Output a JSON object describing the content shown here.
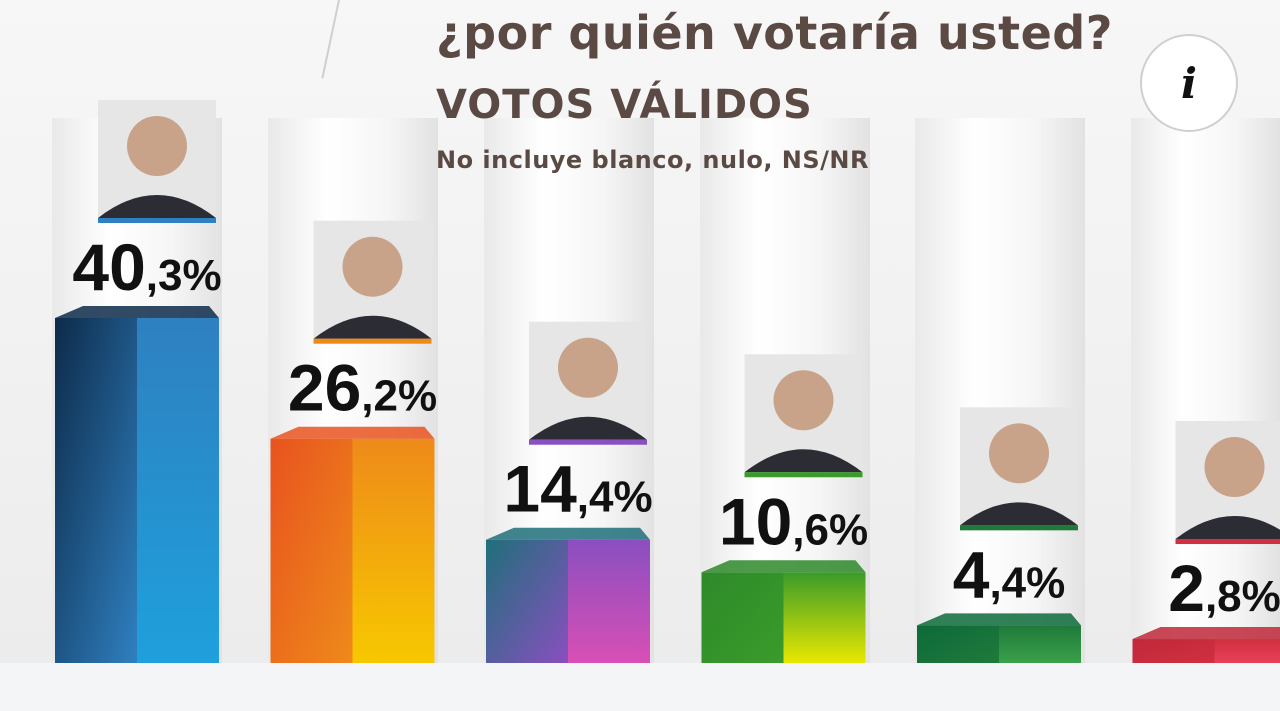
{
  "header": {
    "title": "¿por quién votaría usted?",
    "subtitle": "VOTOS VÁLIDOS",
    "note": "No incluye blanco, nulo, NS/NR"
  },
  "info_button": {
    "label": "i",
    "icon": "info-icon"
  },
  "chart_data": {
    "type": "bar",
    "title": "¿por quién votaría usted?",
    "subtitle": "VOTOS VÁLIDOS",
    "note": "No incluye blanco, nulo, NS/NR",
    "categories": [
      "",
      "",
      "",
      "",
      "",
      ""
    ],
    "values": [
      40.3,
      26.2,
      14.4,
      10.6,
      4.4,
      2.8
    ],
    "labels": [
      {
        "int": "40",
        "dec": ",3%"
      },
      {
        "int": "26",
        "dec": ",2%"
      },
      {
        "int": "14",
        "dec": ",4%"
      },
      {
        "int": "10",
        "dec": ",6%"
      },
      {
        "int": "4",
        "dec": ",4%"
      },
      {
        "int": "2",
        "dec": ",8%"
      }
    ],
    "colors": [
      {
        "front": "#0d2b4a",
        "side": "#1ea0dc",
        "accent": "#2f80c0"
      },
      {
        "front": "#e8531f",
        "side": "#f7c800",
        "accent": "#ee8a1a"
      },
      {
        "front": "#1f6f7a",
        "side": "#d84fb5",
        "accent": "#8a4fc0"
      },
      {
        "front": "#2e8a2a",
        "side": "#e8e800",
        "accent": "#3a9b2a"
      },
      {
        "front": "#0d6a3a",
        "side": "#3aa04a",
        "accent": "#1f7a3a"
      },
      {
        "front": "#c0283a",
        "side": "#e8405a",
        "accent": "#d03040"
      }
    ],
    "ylim": [
      0,
      50
    ],
    "grid": false,
    "legend": "none"
  }
}
